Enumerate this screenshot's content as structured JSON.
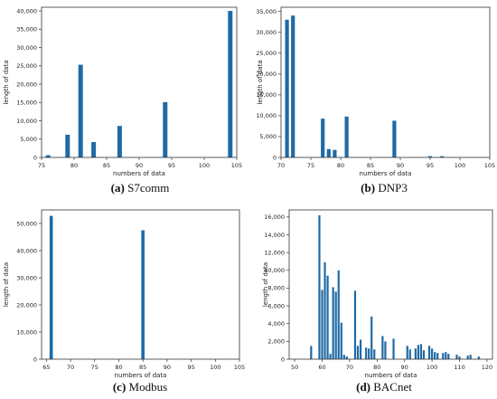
{
  "chart_data": [
    {
      "type": "bar",
      "panel": "a",
      "caption_letter": "(a)",
      "caption_name": "S7comm",
      "xlabel": "numbers of data",
      "ylabel": "length of data",
      "color": "#1f6aa5",
      "xlim": [
        75,
        105
      ],
      "ylim": [
        0,
        41000
      ],
      "xticks": [
        75,
        80,
        85,
        90,
        95,
        100,
        105
      ],
      "yticks": [
        0,
        5000,
        10000,
        15000,
        20000,
        25000,
        30000,
        35000,
        40000
      ],
      "x": [
        76,
        79,
        81,
        83,
        87,
        94,
        104
      ],
      "values": [
        600,
        6200,
        25300,
        4200,
        8600,
        15100,
        40000
      ]
    },
    {
      "type": "bar",
      "panel": "b",
      "caption_letter": "(b)",
      "caption_name": "DNP3",
      "xlabel": "numbers of data",
      "ylabel": "length of data",
      "color": "#1f6aa5",
      "xlim": [
        70,
        105
      ],
      "ylim": [
        0,
        36000
      ],
      "xticks": [
        70,
        75,
        80,
        85,
        90,
        95,
        100,
        105
      ],
      "yticks": [
        0,
        5000,
        10000,
        15000,
        20000,
        25000,
        30000,
        35000
      ],
      "x": [
        71,
        72,
        77,
        78,
        79,
        81,
        89,
        95,
        97
      ],
      "values": [
        33000,
        34000,
        9300,
        2000,
        1800,
        9800,
        8800,
        300,
        300
      ]
    },
    {
      "type": "bar",
      "panel": "c",
      "caption_letter": "(c)",
      "caption_name": "Modbus",
      "xlabel": "numbers of data",
      "ylabel": "length of data",
      "color": "#1f6aa5",
      "xlim": [
        64,
        105
      ],
      "ylim": [
        0,
        55000
      ],
      "xticks": [
        65,
        70,
        75,
        80,
        85,
        90,
        95,
        100,
        105
      ],
      "yticks": [
        0,
        10000,
        20000,
        30000,
        40000,
        50000
      ],
      "x": [
        66,
        85
      ],
      "values": [
        52800,
        47500
      ]
    },
    {
      "type": "bar",
      "panel": "d",
      "caption_letter": "(d)",
      "caption_name": "BACnet",
      "xlabel": "numbers of data",
      "ylabel": "length of data",
      "color": "#1f6aa5",
      "xlim": [
        48,
        122
      ],
      "ylim": [
        0,
        16800
      ],
      "xticks": [
        50,
        60,
        70,
        80,
        90,
        100,
        110,
        120
      ],
      "yticks": [
        0,
        2000,
        4000,
        6000,
        8000,
        10000,
        12000,
        14000,
        16000
      ],
      "x": [
        56,
        59,
        60,
        61,
        62,
        63,
        64,
        65,
        66,
        67,
        68,
        69,
        72,
        73,
        74,
        76,
        77,
        78,
        79,
        82,
        83,
        86,
        91,
        92,
        94,
        95,
        96,
        97,
        99,
        100,
        101,
        102,
        104,
        105,
        106,
        109,
        110,
        113,
        114,
        117
      ],
      "values": [
        1500,
        16200,
        7800,
        10900,
        9400,
        600,
        8100,
        7600,
        10000,
        4100,
        500,
        300,
        7700,
        1500,
        2200,
        1300,
        1200,
        4800,
        1100,
        2600,
        2000,
        2300,
        1500,
        1100,
        1200,
        1600,
        1700,
        1000,
        1500,
        1200,
        800,
        700,
        700,
        800,
        600,
        500,
        300,
        400,
        500,
        300
      ]
    }
  ]
}
